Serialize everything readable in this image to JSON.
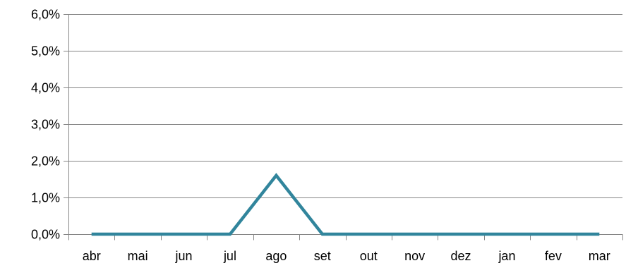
{
  "chart_data": {
    "type": "line",
    "title": "",
    "xlabel": "",
    "ylabel": "",
    "categories": [
      "abr",
      "mai",
      "jun",
      "jul",
      "ago",
      "set",
      "out",
      "nov",
      "dez",
      "jan",
      "fev",
      "mar"
    ],
    "series": [
      {
        "values": [
          0.0,
          0.0,
          0.0,
          0.0,
          1.6,
          0.0,
          0.0,
          0.0,
          0.0,
          0.0,
          0.0,
          0.0
        ],
        "color": "#31859C"
      }
    ],
    "ylim": [
      0,
      6
    ],
    "yticks": [
      0,
      1,
      2,
      3,
      4,
      5,
      6
    ],
    "ytick_labels": [
      "0,0%",
      "1,0%",
      "2,0%",
      "3,0%",
      "4,0%",
      "5,0%",
      "6,0%"
    ],
    "grid": true,
    "grid_color": "#868686",
    "axis_color": "#868686",
    "legend": "none"
  }
}
